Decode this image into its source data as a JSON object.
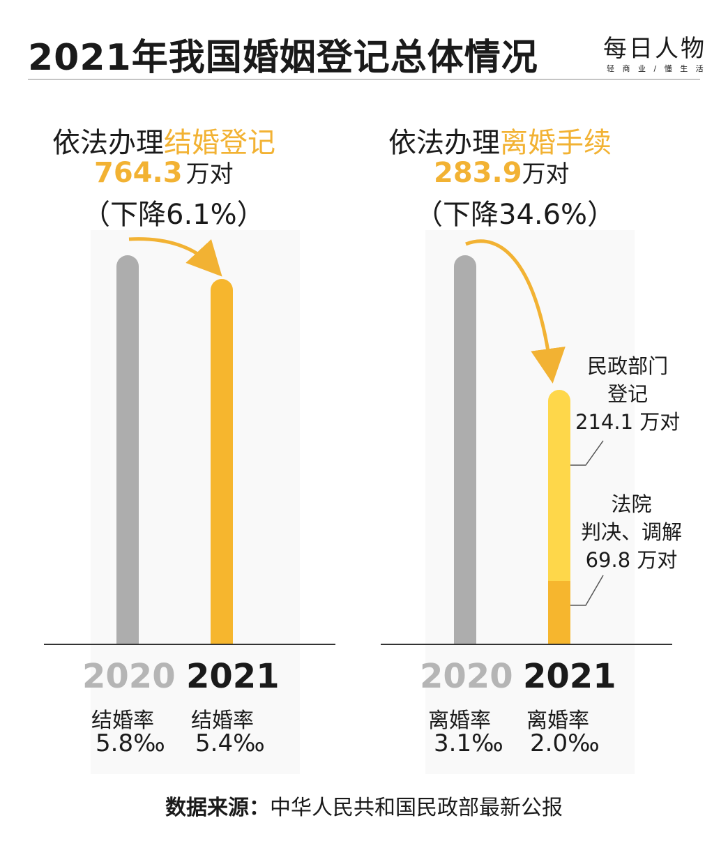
{
  "title": "2021年我国婚姻登记总体情况",
  "logo": {
    "main": "每日人物",
    "sub": "轻 商 业 / 懂 生 活"
  },
  "left": {
    "heading_prefix": "依法办理",
    "heading_accent": "结婚登记",
    "value": "764.3",
    "unit": "万对",
    "change": "（下降6.1%）",
    "year_prev": "2020",
    "year_curr": "2021",
    "rate_label_prev": "结婚率",
    "rate_value_prev": "5.8‰",
    "rate_label_curr": "结婚率",
    "rate_value_curr": "5.4‰"
  },
  "right": {
    "heading_prefix": "依法办理",
    "heading_accent": "离婚手续",
    "value": "283.9",
    "unit": "万对",
    "change": "（下降34.6%）",
    "year_prev": "2020",
    "year_curr": "2021",
    "rate_label_prev": "离婚率",
    "rate_value_prev": "3.1‰",
    "rate_label_curr": "离婚率",
    "rate_value_curr": "2.0‰",
    "annotation_civil": [
      "民政部门",
      "登记",
      "214.1 万对"
    ],
    "annotation_court": [
      "法院",
      "判决、调解",
      "69.8 万对"
    ]
  },
  "footer": {
    "label": "数据来源：",
    "text": "中华人民共和国民政部最新公报"
  },
  "colors": {
    "gray_bar": "#adadad",
    "orange_bar": "#f6b62e",
    "yellow_bar": "#fed74a",
    "accent_text": "#f2b233",
    "year_prev_text": "#b5b5b5"
  },
  "chart_data": [
    {
      "type": "bar",
      "categories": [
        "2020",
        "2021"
      ],
      "values": [
        814.3,
        764.3
      ],
      "ylim": [
        0,
        814.3
      ]
    },
    {
      "type": "bar",
      "categories": [
        "2020",
        "2021"
      ],
      "series": [
        {
          "name": "民政部门登记",
          "values": [
            null,
            214.1
          ]
        },
        {
          "name": "法院判决、调解",
          "values": [
            null,
            69.8
          ]
        }
      ],
      "totals": [
        434.1,
        283.9
      ],
      "ylim": [
        0,
        434.1
      ]
    }
  ]
}
